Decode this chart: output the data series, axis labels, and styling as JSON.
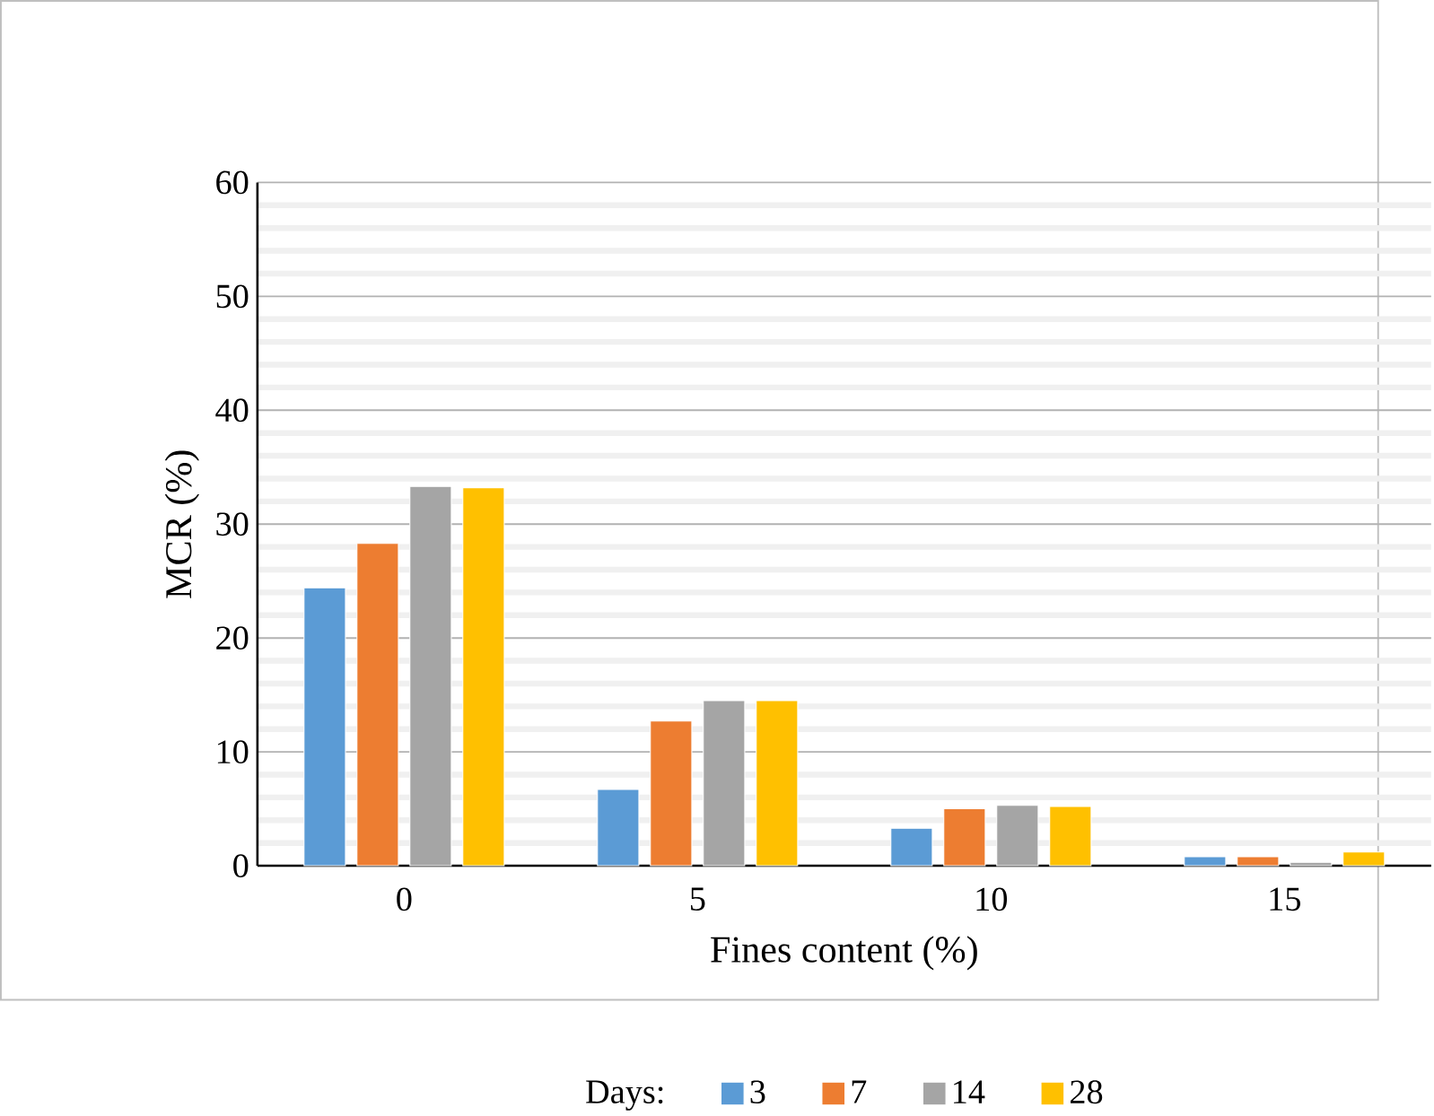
{
  "chart_data": {
    "type": "bar",
    "xlabel": "Fines content (%)",
    "ylabel": "MCR (%)",
    "legend_title": "Days:",
    "categories": [
      "0",
      "5",
      "10",
      "15"
    ],
    "series": [
      {
        "name": "3",
        "color": "#5b9bd5",
        "values": [
          24.4,
          6.7,
          3.3,
          0.8
        ]
      },
      {
        "name": "7",
        "color": "#ed7d31",
        "values": [
          28.3,
          12.7,
          5.0,
          0.8
        ]
      },
      {
        "name": "14",
        "color": "#a5a5a5",
        "values": [
          33.3,
          14.5,
          5.3,
          0.3
        ]
      },
      {
        "name": "28",
        "color": "#ffc000",
        "values": [
          33.2,
          14.5,
          5.2,
          1.2
        ]
      }
    ],
    "ylim": [
      0,
      60
    ],
    "yticks": [
      0,
      10,
      20,
      30,
      40,
      50,
      60
    ],
    "grid": "y",
    "legend": "bottom"
  }
}
